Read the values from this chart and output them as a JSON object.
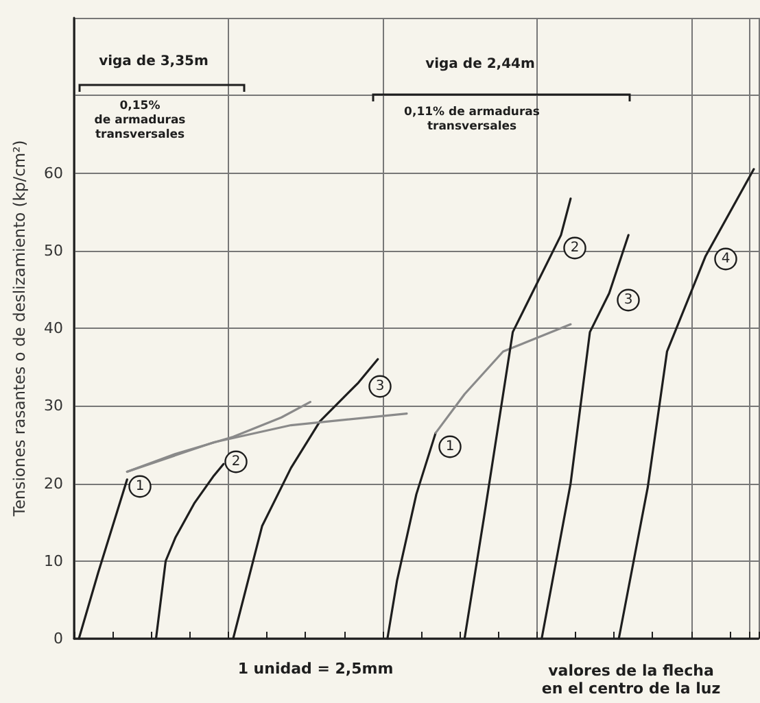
{
  "chart_data": {
    "type": "line",
    "ylabel": "Tensiones rasantes o de deslizamiento (kp/cm²)",
    "xlabel": "valores de la flecha\nen el centro de la luz",
    "annotations": [
      "1 unidad = 2,5mm",
      "viga de 3,35m",
      "0,15%\nde armaduras\ntransversales",
      "viga de 2,44m",
      "0,11% de armaduras\ntransversales",
      "1",
      "2",
      "3",
      "1",
      "2",
      "3",
      "4"
    ],
    "categories": [
      null,
      null,
      null,
      null,
      null,
      null,
      null,
      null,
      null,
      null,
      null,
      null,
      null,
      null,
      null,
      null,
      null,
      null,
      null,
      null,
      null,
      null,
      null,
      null,
      null,
      null,
      null,
      null,
      null,
      null,
      null,
      null,
      null,
      null,
      null,
      null,
      null,
      null,
      null,
      null,
      null,
      null,
      null,
      null,
      null,
      null,
      null,
      null,
      null,
      null,
      null,
      null,
      null,
      null,
      null,
      null,
      null,
      null,
      null,
      null,
      null,
      null,
      null,
      null,
      null,
      null,
      null,
      null,
      null,
      null,
      null
    ],
    "series": [
      {
        "color": "#1e1e1e",
        "values": [
          0,
          null,
          8.5,
          null,
          null,
          20.5,
          null,
          null,
          null,
          null,
          null,
          null,
          null,
          null,
          null,
          null,
          null,
          null,
          null,
          null,
          null,
          null,
          null,
          null,
          null,
          null,
          null,
          null,
          null,
          null,
          null,
          null,
          null,
          null,
          null,
          null,
          null,
          null,
          null,
          null,
          null,
          null,
          null,
          null,
          null,
          null,
          null,
          null,
          null,
          null,
          null,
          null,
          null,
          null,
          null,
          null,
          null,
          null,
          null,
          null,
          null,
          null,
          null,
          null,
          null,
          null,
          null,
          null,
          null,
          null,
          null
        ]
      },
      {
        "color": "#1e1e1e",
        "values": [
          null,
          null,
          null,
          null,
          null,
          null,
          null,
          null,
          0,
          10,
          13,
          null,
          17.5,
          null,
          21,
          22.5,
          null,
          null,
          null,
          null,
          null,
          null,
          null,
          null,
          null,
          null,
          null,
          null,
          null,
          null,
          null,
          null,
          null,
          null,
          null,
          null,
          null,
          null,
          null,
          null,
          null,
          null,
          null,
          null,
          null,
          null,
          null,
          null,
          null,
          null,
          null,
          null,
          null,
          null,
          null,
          null,
          null,
          null,
          null,
          null,
          null,
          null,
          null,
          null,
          null,
          null,
          null,
          null,
          null,
          null,
          null
        ]
      },
      {
        "color": "#1e1e1e",
        "values": [
          null,
          null,
          null,
          null,
          null,
          null,
          null,
          null,
          null,
          null,
          null,
          null,
          null,
          null,
          null,
          null,
          0,
          null,
          null,
          14.5,
          null,
          null,
          22,
          null,
          null,
          28,
          null,
          null,
          null,
          33,
          null,
          36,
          null,
          null,
          null,
          null,
          null,
          null,
          null,
          null,
          null,
          null,
          null,
          null,
          null,
          null,
          null,
          null,
          null,
          null,
          null,
          null,
          null,
          null,
          null,
          null,
          null,
          null,
          null,
          null,
          null,
          null,
          null,
          null,
          null,
          null,
          null,
          null,
          null,
          null,
          null
        ]
      },
      {
        "color": "#8a8a8a",
        "values": [
          null,
          null,
          null,
          null,
          null,
          21.5,
          null,
          null,
          null,
          null,
          23.8,
          null,
          null,
          null,
          null,
          null,
          26,
          null,
          null,
          null,
          null,
          28.5,
          null,
          null,
          30.5,
          null,
          null,
          null,
          null,
          null,
          null,
          null,
          null,
          null,
          null,
          null,
          null,
          null,
          null,
          null,
          null,
          null,
          null,
          null,
          null,
          null,
          null,
          null,
          null,
          null,
          null,
          null,
          null,
          null,
          null,
          null,
          null,
          null,
          null,
          null,
          null,
          null,
          null,
          null,
          null,
          null,
          null,
          null,
          null,
          null,
          null
        ]
      },
      {
        "color": "#8a8a8a",
        "values": [
          null,
          null,
          null,
          null,
          null,
          21.5,
          null,
          null,
          null,
          null,
          null,
          null,
          null,
          null,
          25.3,
          null,
          null,
          null,
          null,
          null,
          null,
          null,
          27.5,
          null,
          null,
          null,
          null,
          null,
          null,
          null,
          null,
          null,
          null,
          null,
          29,
          null,
          null,
          null,
          null,
          null,
          null,
          null,
          null,
          null,
          null,
          null,
          null,
          null,
          null,
          null,
          null,
          null,
          null,
          null,
          null,
          null,
          null,
          null,
          null,
          null,
          null,
          null,
          null,
          null,
          null,
          null,
          null,
          null,
          null,
          null,
          null
        ]
      },
      {
        "color": "#1e1e1e",
        "values": [
          null,
          null,
          null,
          null,
          null,
          null,
          null,
          null,
          null,
          null,
          null,
          null,
          null,
          null,
          null,
          null,
          null,
          null,
          null,
          null,
          null,
          null,
          null,
          null,
          null,
          null,
          null,
          null,
          null,
          null,
          null,
          null,
          0,
          7.5,
          null,
          18.6,
          null,
          26.5,
          null,
          null,
          null,
          null,
          null,
          null,
          null,
          null,
          null,
          null,
          null,
          null,
          null,
          null,
          null,
          null,
          null,
          null,
          null,
          null,
          null,
          null,
          null,
          null,
          null,
          null,
          null,
          null,
          null,
          null,
          null,
          null,
          null
        ]
      },
      {
        "color": "#8a8a8a",
        "values": [
          null,
          null,
          null,
          null,
          null,
          null,
          null,
          null,
          null,
          null,
          null,
          null,
          null,
          null,
          null,
          null,
          null,
          null,
          null,
          null,
          null,
          null,
          null,
          null,
          null,
          null,
          null,
          null,
          null,
          null,
          null,
          null,
          null,
          null,
          null,
          null,
          null,
          26.5,
          null,
          null,
          31.5,
          null,
          null,
          null,
          37,
          null,
          null,
          null,
          null,
          null,
          null,
          40.5,
          null,
          null,
          null,
          null,
          null,
          null,
          null,
          null,
          null,
          null,
          null,
          null,
          null,
          null,
          null,
          null,
          null,
          null,
          null
        ]
      },
      {
        "color": "#1e1e1e",
        "values": [
          null,
          null,
          null,
          null,
          null,
          null,
          null,
          null,
          null,
          null,
          null,
          null,
          null,
          null,
          null,
          null,
          null,
          null,
          null,
          null,
          null,
          null,
          null,
          null,
          null,
          null,
          null,
          null,
          null,
          null,
          null,
          null,
          null,
          null,
          null,
          null,
          null,
          null,
          null,
          null,
          0,
          null,
          15.5,
          null,
          null,
          39.5,
          null,
          null,
          null,
          null,
          52,
          56.7,
          null,
          null,
          null,
          null,
          null,
          null,
          null,
          null,
          null,
          null,
          null,
          null,
          null,
          null,
          null,
          null,
          null,
          null,
          null
        ]
      },
      {
        "color": "#1e1e1e",
        "values": [
          null,
          null,
          null,
          null,
          null,
          null,
          null,
          null,
          null,
          null,
          null,
          null,
          null,
          null,
          null,
          null,
          null,
          null,
          null,
          null,
          null,
          null,
          null,
          null,
          null,
          null,
          null,
          null,
          null,
          null,
          null,
          null,
          null,
          null,
          null,
          null,
          null,
          null,
          null,
          null,
          null,
          null,
          null,
          null,
          null,
          null,
          null,
          null,
          0,
          null,
          null,
          20,
          null,
          39.5,
          null,
          44.5,
          null,
          52,
          null,
          null,
          null,
          null,
          null,
          null,
          null,
          null,
          null,
          null,
          null,
          null,
          null
        ]
      },
      {
        "color": "#1e1e1e",
        "values": [
          null,
          null,
          null,
          null,
          null,
          null,
          null,
          null,
          null,
          null,
          null,
          null,
          null,
          null,
          null,
          null,
          null,
          null,
          null,
          null,
          null,
          null,
          null,
          null,
          null,
          null,
          null,
          null,
          null,
          null,
          null,
          null,
          null,
          null,
          null,
          null,
          null,
          null,
          null,
          null,
          null,
          null,
          null,
          null,
          null,
          null,
          null,
          null,
          null,
          null,
          null,
          null,
          null,
          null,
          null,
          null,
          0,
          null,
          null,
          19.5,
          null,
          37,
          null,
          null,
          null,
          49.3,
          null,
          null,
          null,
          null,
          60.5
        ]
      }
    ],
    "ylim": [
      0,
      80
    ],
    "yticks": [
      0,
      10,
      20,
      30,
      40,
      50,
      60,
      {
        "value": 70,
        "label": null
      },
      {
        "value": 80,
        "label": null
      }
    ],
    "grid": true,
    "tick_labels": "y",
    "line_style": "solid"
  }
}
